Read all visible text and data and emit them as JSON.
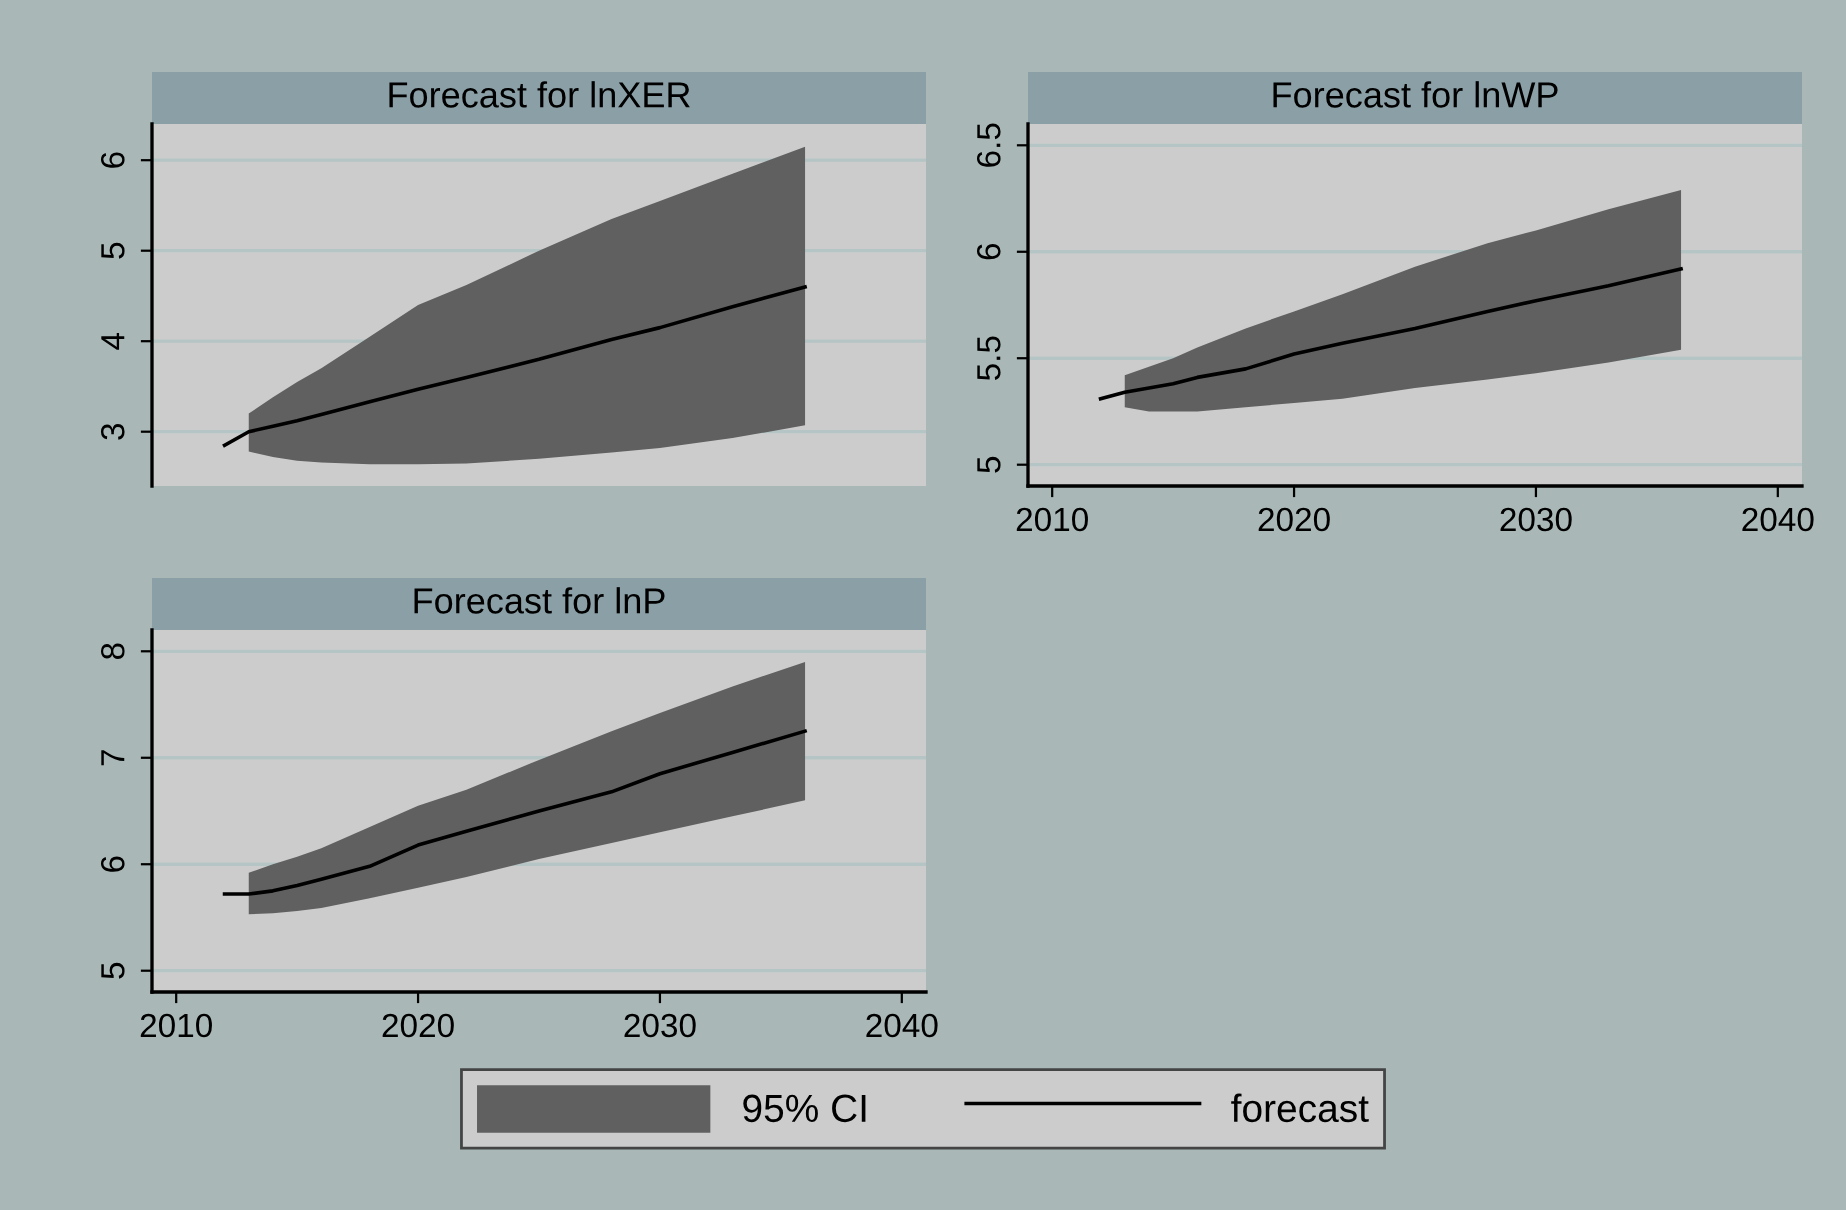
{
  "chart_data": [
    {
      "type": "line",
      "title": "Forecast for lnXER",
      "xlim": [
        2009,
        2041
      ],
      "xticks": [
        2010,
        2020,
        2030,
        2040
      ],
      "ylim": [
        2.4,
        6.4
      ],
      "yticks": [
        3,
        4,
        5,
        6
      ],
      "grid": "y",
      "tick_labels": "y",
      "series": [
        {
          "color": "#000000",
          "x": [
            2012,
            2013,
            2014,
            2015,
            2016,
            2018,
            2020,
            2022,
            2025,
            2028,
            2030,
            2033,
            2036
          ],
          "values": [
            2.85,
            3.0,
            3.06,
            3.12,
            3.19,
            3.33,
            3.47,
            3.6,
            3.8,
            4.02,
            4.15,
            4.38,
            4.6
          ],
          "lower": [
            null,
            2.78,
            2.72,
            2.68,
            2.66,
            2.64,
            2.64,
            2.65,
            2.7,
            2.77,
            2.82,
            2.93,
            3.07
          ],
          "upper": [
            null,
            3.2,
            3.38,
            3.55,
            3.7,
            4.05,
            4.4,
            4.62,
            5.0,
            5.35,
            5.55,
            5.85,
            6.15
          ]
        }
      ]
    },
    {
      "type": "line",
      "title": "Forecast for lnWP",
      "xlim": [
        2009,
        2041
      ],
      "xticks": [
        2010,
        2020,
        2030,
        2040
      ],
      "ylim": [
        4.9,
        6.6
      ],
      "yticks": [
        5,
        5.5,
        6,
        6.5
      ],
      "grid": "y",
      "series": [
        {
          "color": "#000000",
          "x": [
            2012,
            2013,
            2014,
            2015,
            2016,
            2018,
            2020,
            2022,
            2025,
            2028,
            2030,
            2033,
            2036
          ],
          "values": [
            5.31,
            5.34,
            5.36,
            5.38,
            5.41,
            5.45,
            5.52,
            5.57,
            5.64,
            5.72,
            5.77,
            5.84,
            5.92
          ],
          "lower": [
            null,
            5.27,
            5.25,
            5.25,
            5.25,
            5.27,
            5.29,
            5.31,
            5.36,
            5.4,
            5.43,
            5.48,
            5.54
          ],
          "upper": [
            null,
            5.42,
            5.46,
            5.5,
            5.55,
            5.64,
            5.72,
            5.8,
            5.93,
            6.04,
            6.1,
            6.2,
            6.29
          ]
        }
      ]
    },
    {
      "type": "line",
      "title": "Forecast for lnP",
      "xlim": [
        2009,
        2041
      ],
      "xticks": [
        2010,
        2020,
        2030,
        2040
      ],
      "ylim": [
        4.8,
        8.2
      ],
      "yticks": [
        5,
        6,
        7,
        8
      ],
      "grid": "y",
      "legend": "bottom",
      "annotations": [
        "95% CI"
      ],
      "series": [
        {
          "name": "forecast",
          "color": "#000000",
          "x": [
            2012,
            2013,
            2014,
            2015,
            2016,
            2018,
            2020,
            2022,
            2025,
            2028,
            2030,
            2033,
            2036
          ],
          "values": [
            5.72,
            5.72,
            5.75,
            5.8,
            5.86,
            5.98,
            6.18,
            6.31,
            6.5,
            6.68,
            6.85,
            7.05,
            7.25
          ],
          "lower": [
            null,
            5.53,
            5.54,
            5.56,
            5.59,
            5.68,
            5.78,
            5.88,
            6.05,
            6.2,
            6.3,
            6.45,
            6.6
          ],
          "upper": [
            null,
            5.92,
            6.0,
            6.07,
            6.15,
            6.35,
            6.55,
            6.7,
            6.98,
            7.25,
            7.42,
            7.67,
            7.9
          ]
        }
      ]
    }
  ]
}
